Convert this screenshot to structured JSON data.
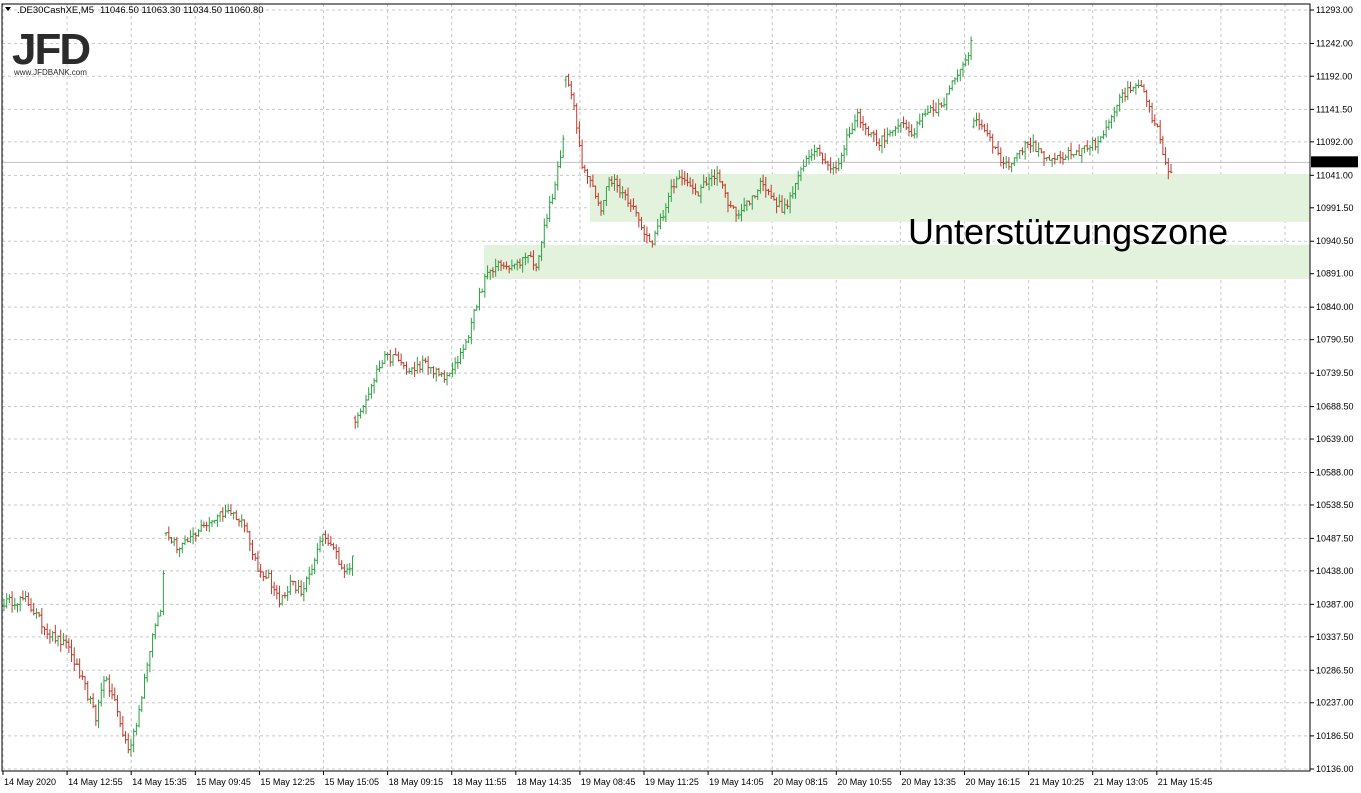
{
  "header": {
    "symbol": ".DE30CashXE,M5",
    "ohlc": "11046.50 11063.30 11034.50 11060.80",
    "dropdown_icon": "triangle-down-icon"
  },
  "logo": {
    "text": "JFD",
    "sub": "www.JFDBANK.com"
  },
  "annotation": {
    "text": "Unterstützungszone"
  },
  "colors": {
    "up_candle": "#2ea043",
    "down_candle": "#c0392b",
    "grid": "#c8c8c8",
    "zone_fill": "#e3f2dc",
    "current_price_bg": "#000000",
    "current_price_line": "#c0c0c0"
  },
  "chart_data": {
    "type": "line",
    "chart_kind": "OHLC bar chart (M5)",
    "title": ".DE30CashXE,M5",
    "ylim": [
      10136.0,
      11293.0
    ],
    "y_ticks": [
      "11293.00",
      "11242.00",
      "11192.00",
      "11141.50",
      "11092.00",
      "11041.00",
      "10991.50",
      "10940.50",
      "10891.00",
      "10840.00",
      "10790.50",
      "10739.50",
      "10688.50",
      "10639.00",
      "10588.00",
      "10538.50",
      "10487.50",
      "10438.00",
      "10387.00",
      "10337.50",
      "10286.50",
      "10237.00",
      "10186.50",
      "10136.00"
    ],
    "x_ticks": [
      "14 May 2020",
      "14 May 12:55",
      "14 May 15:35",
      "15 May 09:45",
      "15 May 12:25",
      "15 May 15:05",
      "18 May 09:15",
      "18 May 11:55",
      "18 May 14:35",
      "19 May 08:45",
      "19 May 11:25",
      "19 May 14:05",
      "20 May 08:15",
      "20 May 10:55",
      "20 May 13:35",
      "20 May 16:15",
      "21 May 10:25",
      "21 May 13:05",
      "21 May 15:45"
    ],
    "current_price": "11060.80",
    "support_zones": [
      {
        "low": 10970,
        "high": 11043
      },
      {
        "low": 10883,
        "high": 10935
      }
    ],
    "series": [
      {
        "name": ".DE30CashXE,M5",
        "close_path": [
          [
            0,
            10390
          ],
          [
            8,
            10395
          ],
          [
            16,
            10345
          ],
          [
            24,
            10320
          ],
          [
            30,
            10260
          ],
          [
            34,
            10215
          ],
          [
            37,
            10275
          ],
          [
            41,
            10240
          ],
          [
            44,
            10190
          ],
          [
            46,
            10165
          ],
          [
            50,
            10220
          ],
          [
            53,
            10300
          ],
          [
            56,
            10360
          ],
          [
            58,
            10380
          ],
          [
            59,
            10440
          ],
          [
            60,
            10495
          ],
          [
            65,
            10470
          ],
          [
            72,
            10500
          ],
          [
            78,
            10520
          ],
          [
            82,
            10530
          ],
          [
            87,
            10520
          ],
          [
            90,
            10495
          ],
          [
            94,
            10440
          ],
          [
            98,
            10430
          ],
          [
            102,
            10390
          ],
          [
            106,
            10420
          ],
          [
            110,
            10405
          ],
          [
            114,
            10440
          ],
          [
            118,
            10490
          ],
          [
            122,
            10470
          ],
          [
            126,
            10440
          ],
          [
            128,
            10435
          ],
          [
            129,
            10460
          ],
          [
            130,
            10670
          ],
          [
            135,
            10710
          ],
          [
            140,
            10760
          ],
          [
            145,
            10765
          ],
          [
            150,
            10740
          ],
          [
            155,
            10755
          ],
          [
            160,
            10740
          ],
          [
            164,
            10730
          ],
          [
            168,
            10760
          ],
          [
            172,
            10800
          ],
          [
            176,
            10860
          ],
          [
            180,
            10900
          ],
          [
            185,
            10905
          ],
          [
            190,
            10905
          ],
          [
            194,
            10920
          ],
          [
            197,
            10905
          ],
          [
            200,
            10960
          ],
          [
            204,
            11030
          ],
          [
            207,
            11090
          ],
          [
            208,
            11190
          ],
          [
            210,
            11170
          ],
          [
            212,
            11120
          ],
          [
            214,
            11060
          ],
          [
            218,
            11020
          ],
          [
            221,
            10990
          ],
          [
            224,
            11040
          ],
          [
            228,
            11020
          ],
          [
            232,
            11000
          ],
          [
            236,
            10960
          ],
          [
            240,
            10940
          ],
          [
            244,
            10980
          ],
          [
            248,
            11030
          ],
          [
            252,
            11040
          ],
          [
            256,
            11010
          ],
          [
            260,
            11030
          ],
          [
            264,
            11040
          ],
          [
            268,
            11000
          ],
          [
            272,
            10980
          ],
          [
            276,
            11000
          ],
          [
            280,
            11030
          ],
          [
            284,
            11010
          ],
          [
            288,
            10990
          ],
          [
            292,
            11010
          ],
          [
            296,
            11060
          ],
          [
            300,
            11080
          ],
          [
            304,
            11060
          ],
          [
            308,
            11050
          ],
          [
            312,
            11100
          ],
          [
            316,
            11130
          ],
          [
            320,
            11110
          ],
          [
            324,
            11090
          ],
          [
            328,
            11110
          ],
          [
            332,
            11120
          ],
          [
            336,
            11100
          ],
          [
            340,
            11130
          ],
          [
            344,
            11140
          ],
          [
            348,
            11150
          ],
          [
            352,
            11190
          ],
          [
            356,
            11220
          ],
          [
            358,
            11240
          ],
          [
            359,
            11130
          ],
          [
            364,
            11110
          ],
          [
            368,
            11070
          ],
          [
            372,
            11060
          ],
          [
            376,
            11080
          ],
          [
            380,
            11090
          ],
          [
            384,
            11070
          ],
          [
            388,
            11060
          ],
          [
            392,
            11070
          ],
          [
            396,
            11075
          ],
          [
            400,
            11080
          ],
          [
            404,
            11090
          ],
          [
            408,
            11110
          ],
          [
            412,
            11150
          ],
          [
            416,
            11170
          ],
          [
            420,
            11185
          ],
          [
            424,
            11140
          ],
          [
            427,
            11110
          ],
          [
            430,
            11060
          ],
          [
            432,
            11040
          ]
        ]
      }
    ]
  }
}
